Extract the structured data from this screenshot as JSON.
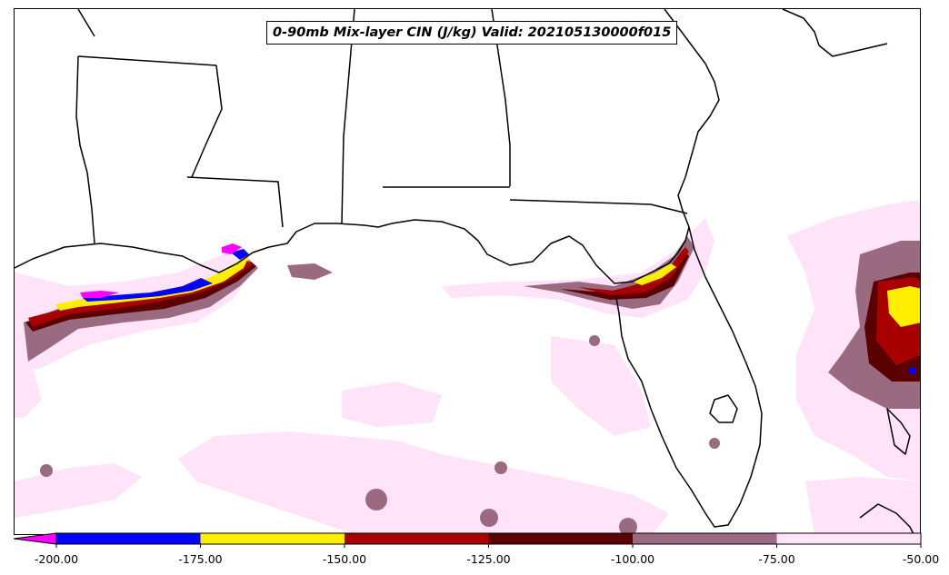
{
  "title": "0-90mb Mix-layer CIN (J/kg) Valid: 202105130000f015",
  "colorbar": {
    "extend": "min",
    "levels": [
      -200,
      -175,
      -150,
      -125,
      -100,
      -75,
      -50
    ],
    "tick_labels": [
      "-200.00",
      "-175.00",
      "-150.00",
      "-125.00",
      "-100.00",
      "-75.00",
      "-50.00"
    ],
    "under_color": "#ff00ff",
    "colors": [
      "#0000ff",
      "#ffee00",
      "#a80000",
      "#5a0000",
      "#9a6b80",
      "#ffe3f8"
    ]
  },
  "fill_classes": {
    "pink": "#ffe3f8",
    "mauve": "#9a6b80",
    "dark_red": "#5a0000",
    "red": "#a80000",
    "yellow": "#ffee00",
    "blue": "#0000ff",
    "magenta": "#ff00ff"
  }
}
